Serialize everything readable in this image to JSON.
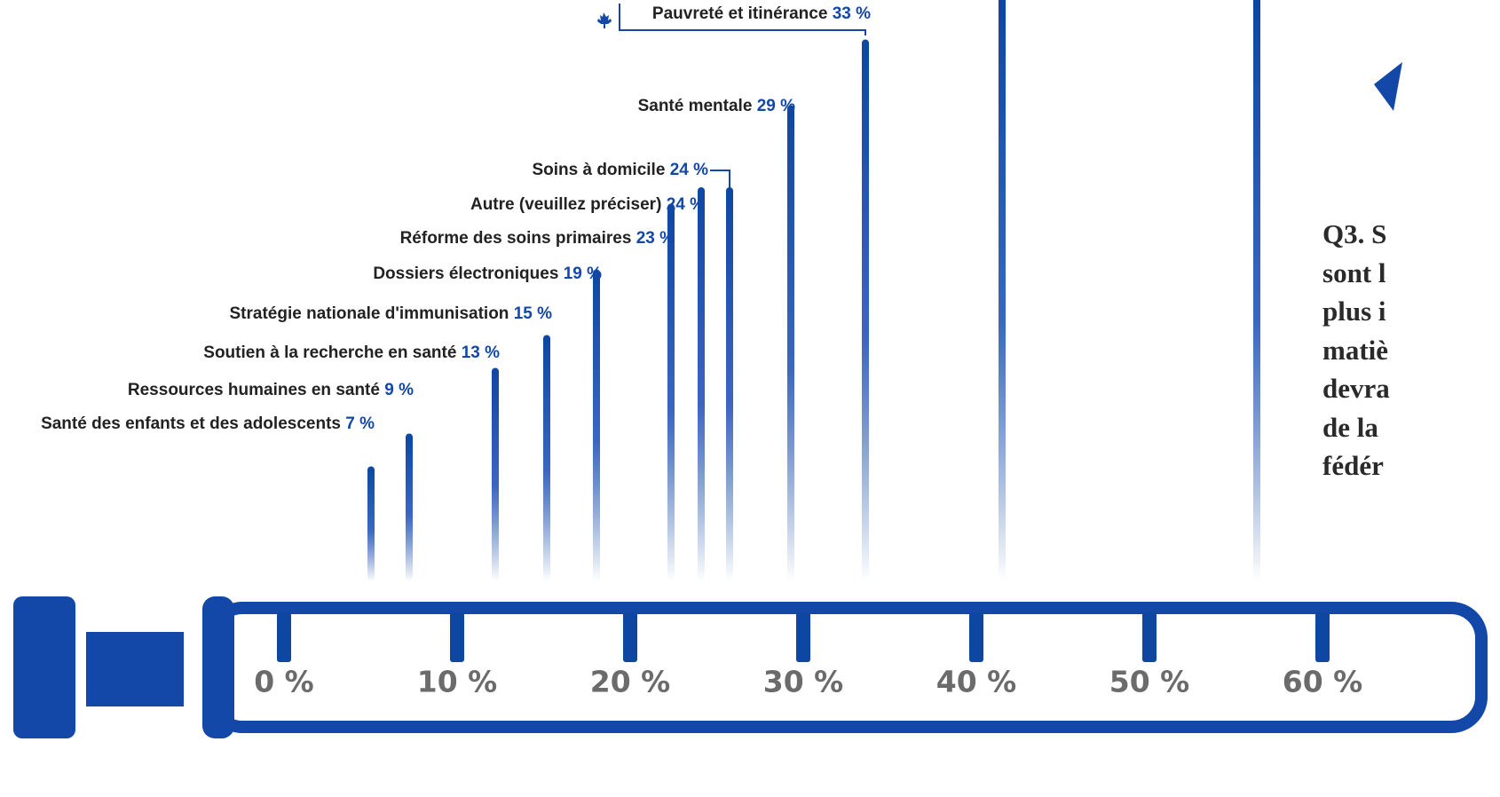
{
  "chart_data": {
    "type": "bar",
    "categories": [
      "Santé des enfants et des adolescents",
      "Ressources humaines en santé",
      "Soutien à la recherche en santé",
      "Stratégie nationale d'immunisation",
      "Dossiers électroniques",
      "Réforme des soins primaires",
      "Autre (veuillez préciser)",
      "Soins à domicile",
      "Santé mentale",
      "Pauvreté et itinérance"
    ],
    "values": [
      7,
      9,
      13,
      15,
      19,
      23,
      24,
      24,
      29,
      33
    ],
    "value_labels": [
      "7 %",
      "9 %",
      "13 %",
      "15 %",
      "19 %",
      "23 %",
      "24 %",
      "24 %",
      "29 %",
      "33 %"
    ],
    "color": "#0d47a1",
    "xlim": [
      0,
      60
    ],
    "xticks": [
      {
        "value": 0,
        "label": "0 %"
      },
      {
        "value": 10,
        "label": "10 %"
      },
      {
        "value": 20,
        "label": "20 %"
      },
      {
        "value": 30,
        "label": "30 %"
      },
      {
        "value": 40,
        "label": "40 %"
      },
      {
        "value": 50,
        "label": "50 %"
      },
      {
        "value": 60,
        "label": "60 %"
      }
    ]
  },
  "question": [
    "Q3. S",
    "sont l",
    "plus i",
    "matiè",
    "devra",
    "de la",
    "fédér"
  ]
}
